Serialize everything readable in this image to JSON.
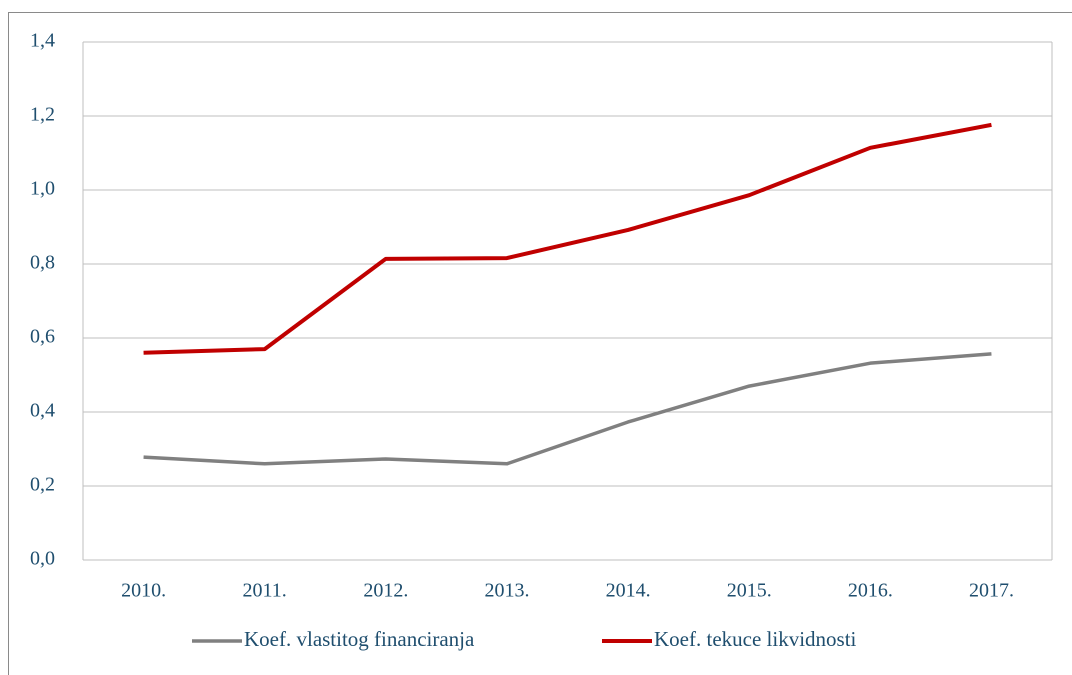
{
  "chart_data": {
    "type": "line",
    "categories": [
      "2010.",
      "2011.",
      "2012.",
      "2013.",
      "2014.",
      "2015.",
      "2016.",
      "2017."
    ],
    "series": [
      {
        "name": "Koef. vlastitog financiranja",
        "color": "#808080",
        "values": [
          0.278,
          0.26,
          0.273,
          0.26,
          0.373,
          0.47,
          0.532,
          0.557
        ]
      },
      {
        "name": "Koef. tekuce likvidnosti",
        "color": "#c00000",
        "values": [
          0.56,
          0.57,
          0.814,
          0.816,
          0.892,
          0.986,
          1.114,
          1.176
        ]
      }
    ],
    "ylim": [
      0,
      1.4
    ],
    "yticks": [
      {
        "value": 0,
        "label": "0,0"
      },
      {
        "value": 0.2,
        "label": "0,2"
      },
      {
        "value": 0.4,
        "label": "0,4"
      },
      {
        "value": 0.6,
        "label": "0,6"
      },
      {
        "value": 0.8,
        "label": "0,8"
      },
      {
        "value": 1.0,
        "label": "1,0"
      },
      {
        "value": 1.2,
        "label": "1,2"
      },
      {
        "value": 1.4,
        "label": "1,4"
      }
    ],
    "grid": true,
    "legend": "bottom"
  }
}
